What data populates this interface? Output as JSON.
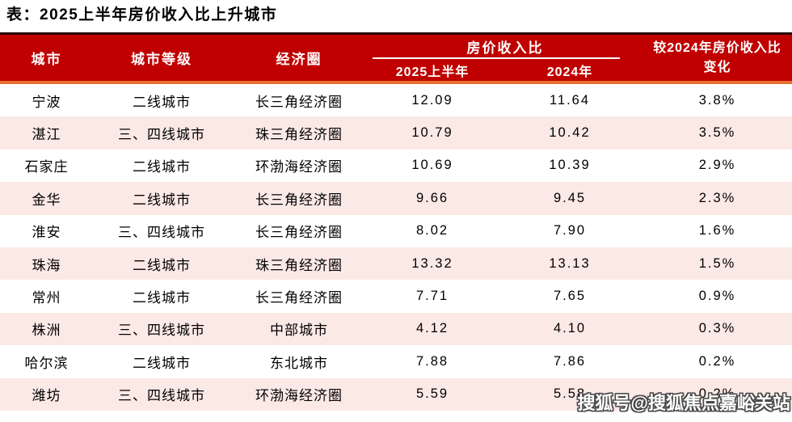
{
  "title": "表：2025上半年房价收入比上升城市",
  "chart_data": {
    "type": "table",
    "title": "表：2025上半年房价收入比上升城市",
    "column_group_label": "房价收入比",
    "columns": [
      "城市",
      "城市等级",
      "经济圈",
      "2025上半年",
      "2024年",
      "较2024年房价收入比变化"
    ],
    "rows": [
      [
        "宁波",
        "二线城市",
        "长三角经济圈",
        "12.09",
        "11.64",
        "3.8%"
      ],
      [
        "湛江",
        "三、四线城市",
        "珠三角经济圈",
        "10.79",
        "10.42",
        "3.5%"
      ],
      [
        "石家庄",
        "二线城市",
        "环渤海经济圈",
        "10.69",
        "10.39",
        "2.9%"
      ],
      [
        "金华",
        "二线城市",
        "长三角经济圈",
        "9.66",
        "9.45",
        "2.3%"
      ],
      [
        "淮安",
        "三、四线城市",
        "长三角经济圈",
        "8.02",
        "7.90",
        "1.6%"
      ],
      [
        "珠海",
        "二线城市",
        "珠三角经济圈",
        "13.32",
        "13.13",
        "1.5%"
      ],
      [
        "常州",
        "二线城市",
        "长三角经济圈",
        "7.71",
        "7.65",
        "0.9%"
      ],
      [
        "株洲",
        "三、四线城市",
        "中部城市",
        "4.12",
        "4.10",
        "0.3%"
      ],
      [
        "哈尔滨",
        "二线城市",
        "东北城市",
        "7.88",
        "7.86",
        "0.2%"
      ],
      [
        "潍坊",
        "三、四线城市",
        "环渤海经济圈",
        "5.59",
        "5.58",
        "0.2%"
      ]
    ]
  },
  "watermark": "搜狐号@搜狐焦点嘉峪关站",
  "colors": {
    "header_bg": "#C00000",
    "header_top_border": "#2B0A0A",
    "accent_orange": "#E97132",
    "row_alt_pink": "#FBE9E6",
    "header_text": "#FFFFFF",
    "body_text": "#000000"
  }
}
